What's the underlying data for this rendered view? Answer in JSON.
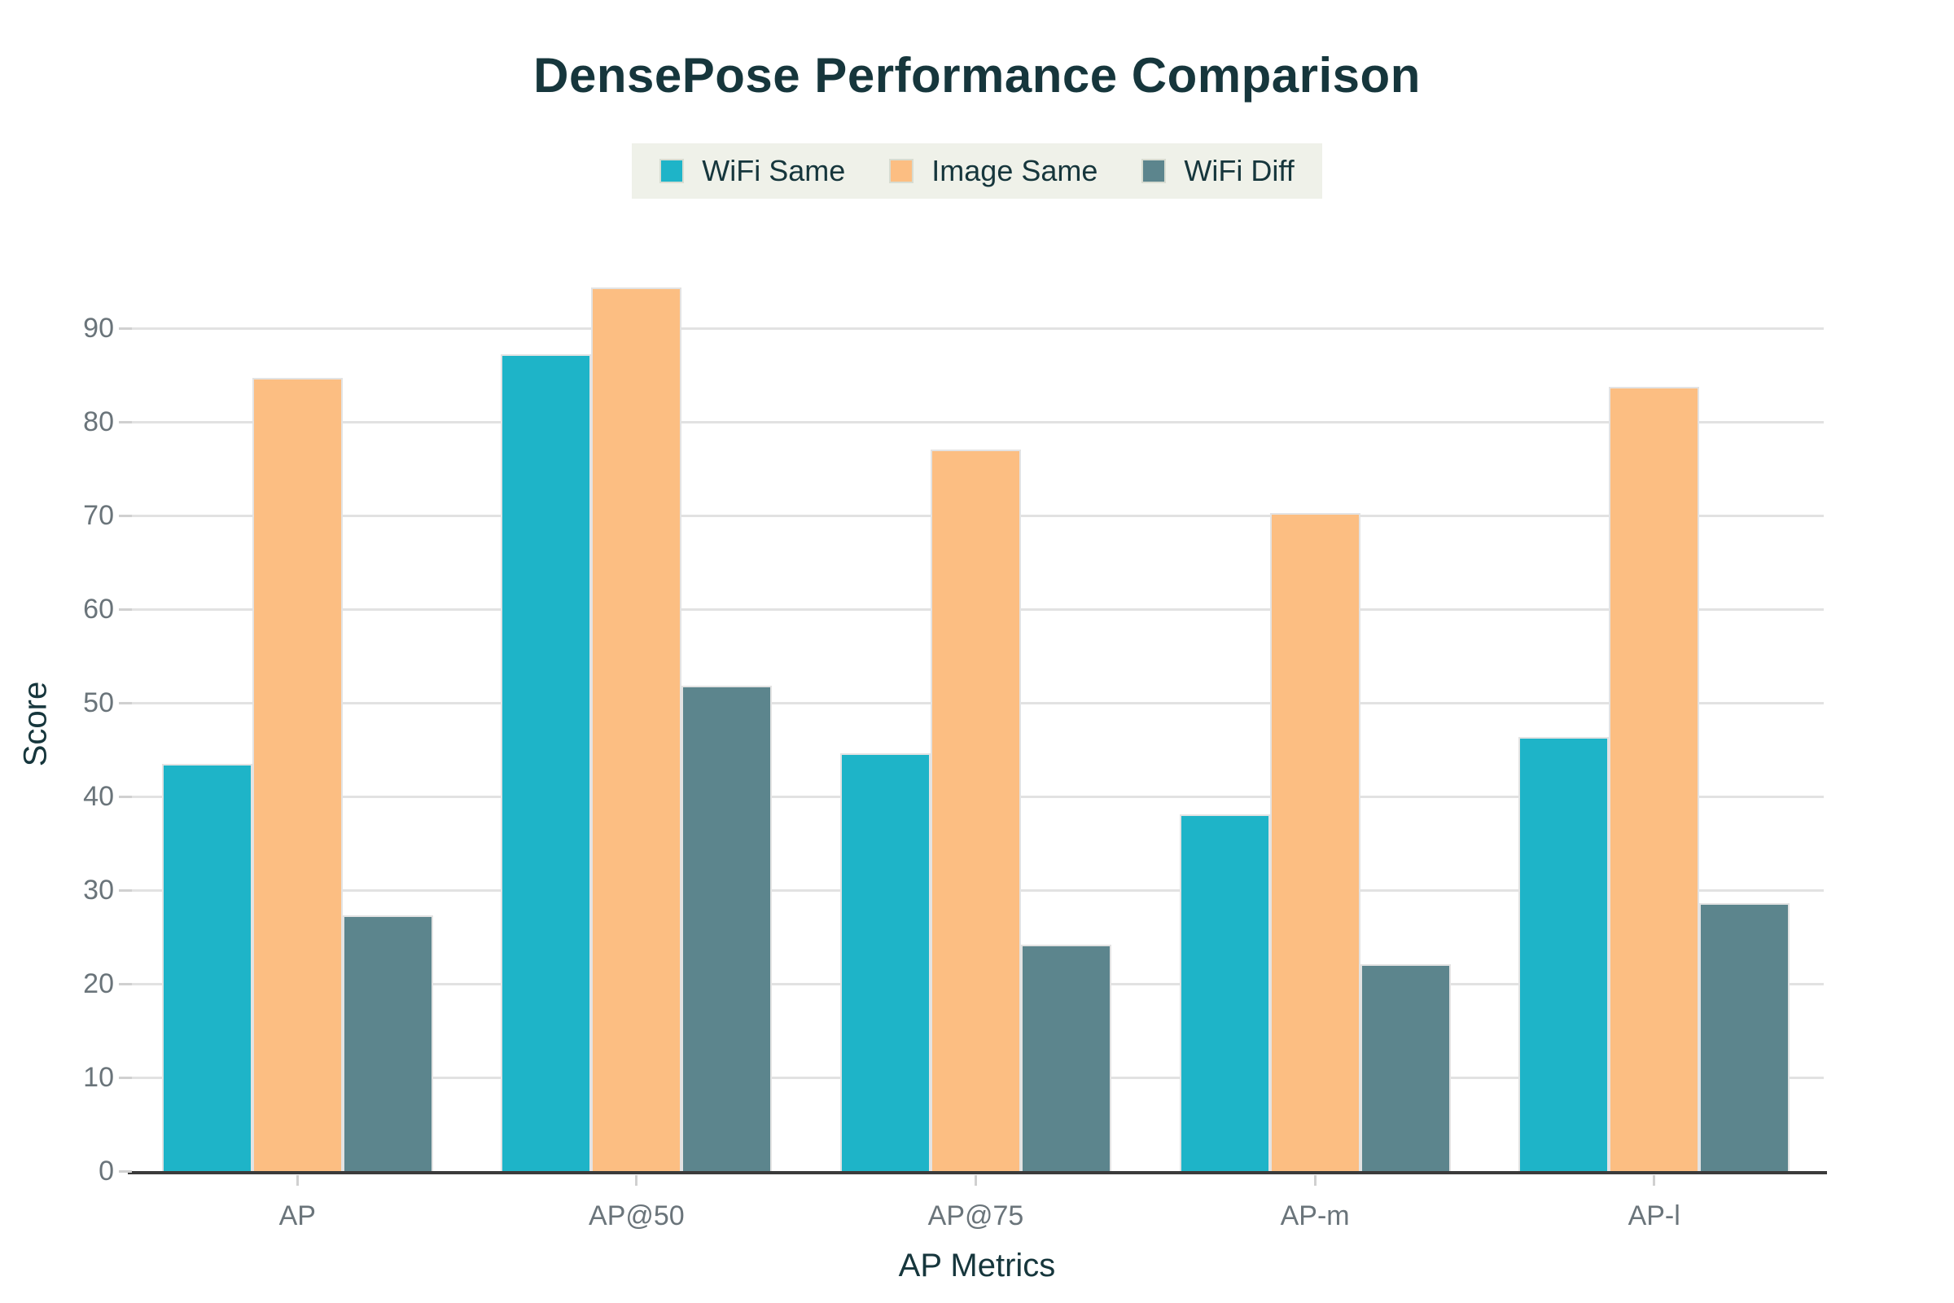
{
  "title": "DensePose Performance Comparison",
  "x_axis_title": "AP Metrics",
  "y_axis_title": "Score",
  "colors": {
    "background": "#ffffff",
    "legend_background": "#eff1e9",
    "title_text": "#16363c",
    "tick_text": "#6a747a",
    "gridline": "#e2e2e2",
    "axis_line": "#3b3b3b",
    "series_wifi_same": "#1eb4c8",
    "series_image_same": "#fcbe82",
    "series_wifi_diff": "#5c858d"
  },
  "chart_data": {
    "type": "bar",
    "title": "DensePose Performance Comparison",
    "xlabel": "AP Metrics",
    "ylabel": "Score",
    "categories": [
      "AP",
      "AP@50",
      "AP@75",
      "AP-m",
      "AP-l"
    ],
    "series": [
      {
        "name": "WiFi Same",
        "color": "#1eb4c8",
        "values": [
          43.5,
          87.2,
          44.6,
          38.1,
          46.4
        ]
      },
      {
        "name": "Image Same",
        "color": "#fcbe82",
        "values": [
          84.7,
          94.4,
          77.1,
          70.3,
          83.8
        ]
      },
      {
        "name": "WiFi Diff",
        "color": "#5c858d",
        "values": [
          27.3,
          51.8,
          24.2,
          22.1,
          28.6
        ]
      }
    ],
    "ylim": [
      0,
      95.5
    ],
    "yticks": [
      0,
      10,
      20,
      30,
      40,
      50,
      60,
      70,
      80,
      90
    ],
    "grid": true,
    "legend_position": "top-center"
  }
}
